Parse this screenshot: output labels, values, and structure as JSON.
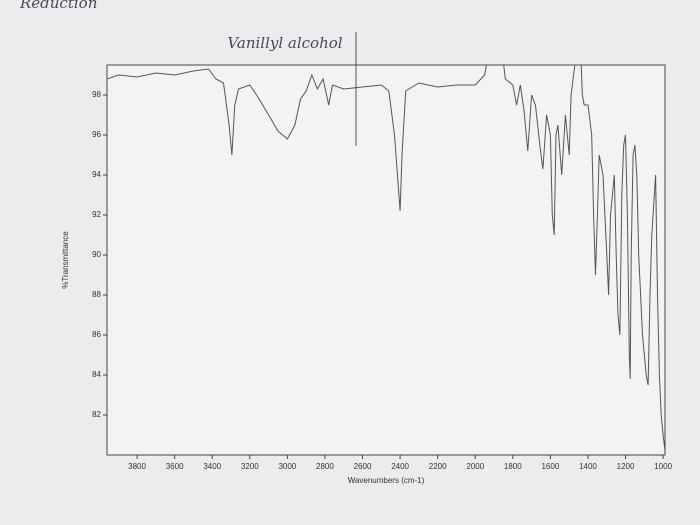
{
  "chart_data": {
    "type": "line",
    "title": "Vanillyl alcohol",
    "annotations": [
      "Reduction"
    ],
    "x_label": "Wavenumbers (cm-1)",
    "y_label": "%Transmittance",
    "color": "#555555",
    "x": [
      3960,
      3900,
      3800,
      3700,
      3600,
      3500,
      3420,
      3380,
      3340,
      3310,
      3295,
      3280,
      3260,
      3200,
      3150,
      3100,
      3050,
      3000,
      2960,
      2930,
      2900,
      2870,
      2840,
      2810,
      2780,
      2760,
      2700,
      2600,
      2500,
      2460,
      2430,
      2410,
      2400,
      2390,
      2370,
      2300,
      2200,
      2100,
      2000,
      1950,
      1920,
      1860,
      1840,
      1800,
      1780,
      1760,
      1740,
      1720,
      1700,
      1680,
      1650,
      1640,
      1620,
      1600,
      1590,
      1580,
      1570,
      1560,
      1540,
      1520,
      1500,
      1490,
      1470,
      1460,
      1440,
      1430,
      1420,
      1400,
      1380,
      1370,
      1360,
      1350,
      1340,
      1320,
      1300,
      1290,
      1280,
      1260,
      1250,
      1240,
      1230,
      1220,
      1210,
      1200,
      1190,
      1180,
      1175,
      1170,
      1160,
      1150,
      1140,
      1130,
      1110,
      1090,
      1080,
      1070,
      1060,
      1040,
      1030,
      1020,
      1010,
      1000,
      990
    ],
    "values": [
      98.8,
      99.0,
      98.9,
      99.1,
      99.0,
      99.2,
      99.3,
      98.8,
      98.6,
      96.5,
      95.0,
      97.5,
      98.3,
      98.5,
      97.8,
      97.0,
      96.2,
      95.8,
      96.5,
      97.8,
      98.2,
      99.0,
      98.3,
      98.8,
      97.5,
      98.5,
      98.3,
      98.4,
      98.5,
      98.2,
      96,
      93.5,
      92.2,
      95,
      98.2,
      98.6,
      98.4,
      98.5,
      98.5,
      99,
      100.5,
      100.5,
      98.8,
      98.5,
      97.5,
      98.5,
      97.2,
      95.2,
      98,
      97.5,
      95,
      94.3,
      97,
      96,
      92,
      91,
      96,
      96.5,
      94,
      97,
      95,
      98,
      99.5,
      100.5,
      100.5,
      98,
      97.5,
      97.5,
      96,
      92,
      89,
      92,
      95,
      94,
      90,
      88,
      92,
      94,
      90,
      87,
      86,
      93,
      95.5,
      96,
      92,
      85,
      83.8,
      90,
      95,
      95.5,
      94,
      90,
      86,
      84,
      83.5,
      88,
      91,
      94,
      88,
      84,
      82,
      81,
      80.2
    ],
    "xlim": [
      3960,
      990
    ],
    "ylim": [
      80,
      99.5
    ],
    "xticks": [
      3800,
      3600,
      3400,
      3200,
      3000,
      2800,
      2600,
      2400,
      2200,
      2000,
      1800,
      1600,
      1400,
      1200,
      1000
    ],
    "yticks": [
      82,
      84,
      86,
      88,
      90,
      92,
      94,
      96,
      98
    ]
  }
}
